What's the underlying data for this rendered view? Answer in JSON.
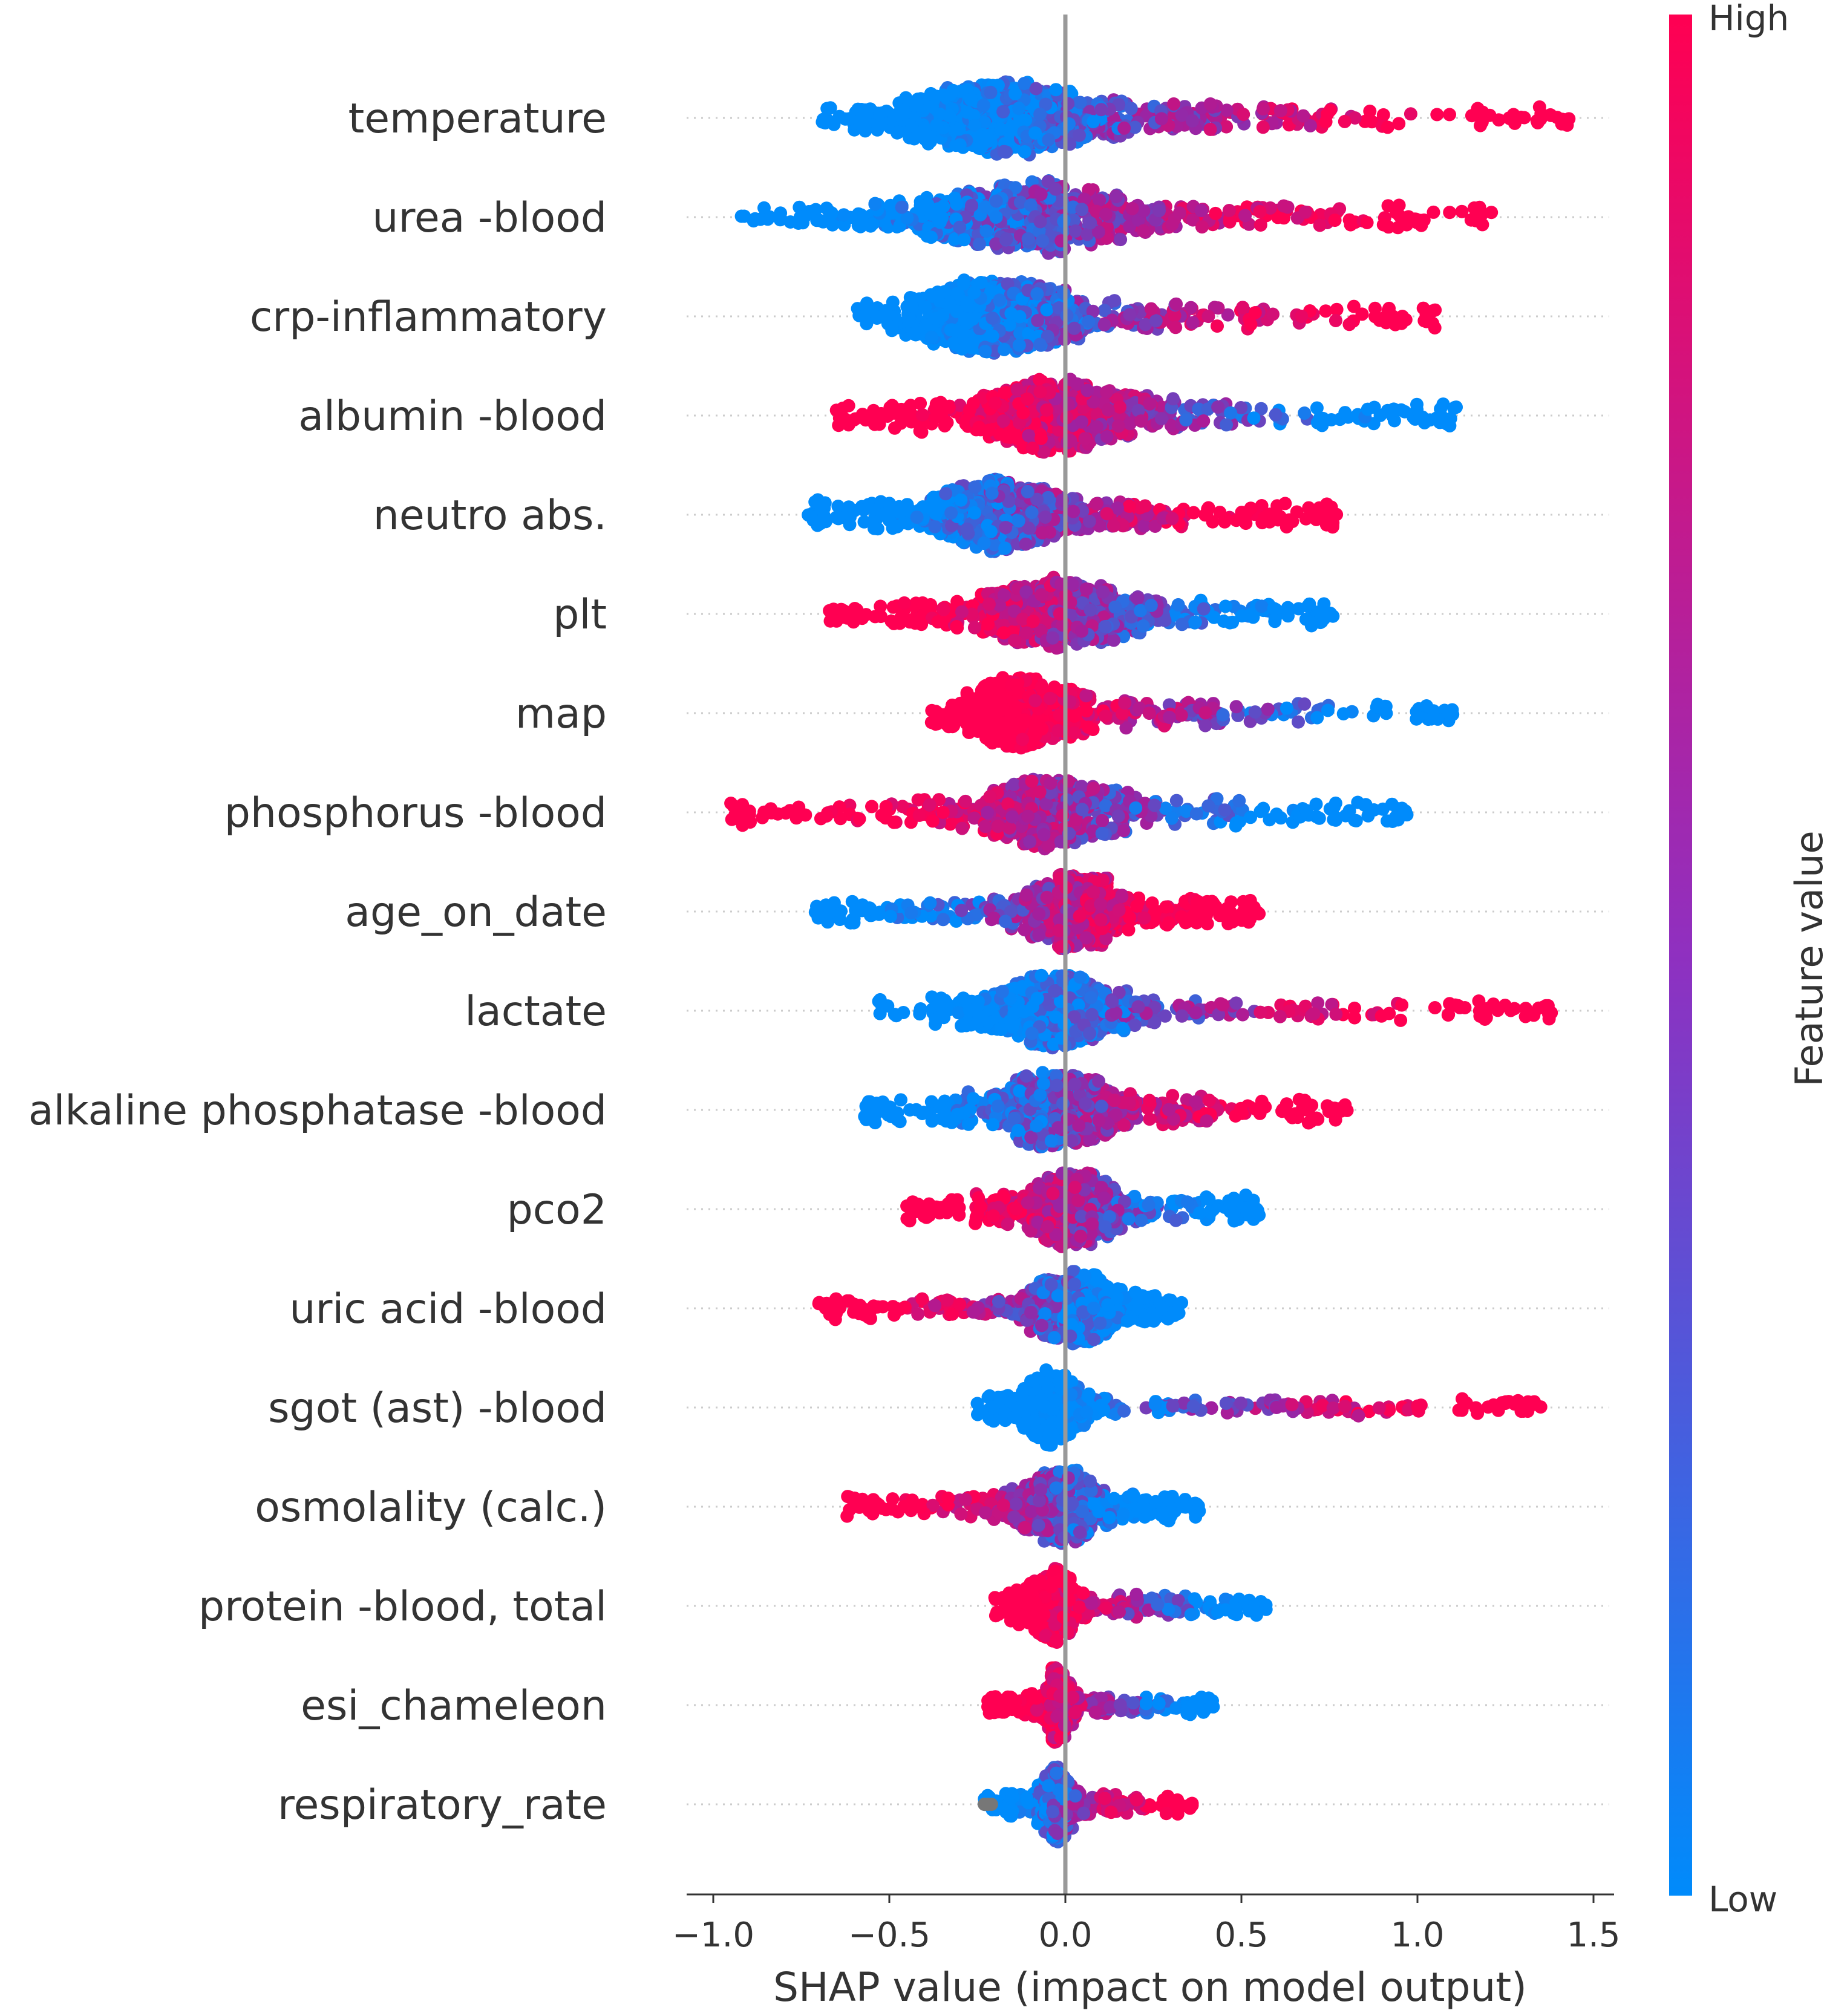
{
  "chart_data": {
    "type": "scatter",
    "subtype": "shap-beeswarm-summary",
    "xlabel": "SHAP value (impact on model output)",
    "xlim": [
      -1.07,
      1.55
    ],
    "xticks": [
      -1.0,
      -0.5,
      0.0,
      0.5,
      1.0,
      1.5
    ],
    "xtick_labels": [
      "−1.0",
      "−0.5",
      "0.0",
      "0.5",
      "1.0",
      "1.5"
    ],
    "zero_line": 0.0,
    "colorbar": {
      "label": "Feature value",
      "high_label": "High",
      "low_label": "Low",
      "high_color": "#ff0052",
      "mid_color": "#a020a0",
      "low_color": "#008bfb",
      "missing_color": "#777777"
    },
    "features": [
      {
        "name": "temperature",
        "min": -0.69,
        "max": 1.43,
        "left_color": "low",
        "right_color": "high",
        "center": -0.16,
        "spread": 0.42,
        "density": 1.0
      },
      {
        "name": "urea -blood",
        "min": -0.92,
        "max": 1.21,
        "left_color": "low",
        "right_color": "high",
        "center": -0.1,
        "spread": 0.42,
        "density": 0.85
      },
      {
        "name": "crp-inflammatory",
        "min": -0.59,
        "max": 1.05,
        "left_color": "low",
        "right_color": "high",
        "center": -0.18,
        "spread": 0.34,
        "density": 0.85
      },
      {
        "name": "albumin -blood",
        "min": -0.65,
        "max": 1.11,
        "left_color": "high",
        "right_color": "low",
        "center": -0.02,
        "spread": 0.35,
        "density": 0.75
      },
      {
        "name": "neutro abs.",
        "min": -0.73,
        "max": 0.77,
        "left_color": "low",
        "right_color": "high",
        "center": -0.18,
        "spread": 0.33,
        "density": 0.8
      },
      {
        "name": "plt",
        "min": -0.67,
        "max": 0.76,
        "left_color": "high",
        "right_color": "low",
        "center": -0.02,
        "spread": 0.32,
        "density": 0.75
      },
      {
        "name": "map",
        "min": -0.38,
        "max": 1.1,
        "left_color": "high",
        "right_color": "low",
        "center": -0.1,
        "spread": 0.26,
        "density": 0.65
      },
      {
        "name": "phosphorus -blood",
        "min": -0.95,
        "max": 0.97,
        "left_color": "high",
        "right_color": "low",
        "center": -0.05,
        "spread": 0.3,
        "density": 0.6
      },
      {
        "name": "age_on_date",
        "min": -0.71,
        "max": 0.55,
        "left_color": "low",
        "right_color": "high",
        "center": 0.02,
        "spread": 0.22,
        "density": 0.75
      },
      {
        "name": "lactate",
        "min": -0.53,
        "max": 1.38,
        "left_color": "low",
        "right_color": "high",
        "center": -0.02,
        "spread": 0.28,
        "density": 0.7
      },
      {
        "name": "alkaline phosphatase -blood",
        "min": -0.57,
        "max": 0.8,
        "left_color": "low",
        "right_color": "high",
        "center": -0.02,
        "spread": 0.25,
        "density": 0.7
      },
      {
        "name": "pco2",
        "min": -0.45,
        "max": 0.55,
        "left_color": "high",
        "right_color": "low",
        "center": 0.02,
        "spread": 0.2,
        "density": 0.65
      },
      {
        "name": "uric acid -blood",
        "min": -0.7,
        "max": 0.33,
        "left_color": "high",
        "right_color": "low",
        "center": 0.02,
        "spread": 0.18,
        "density": 0.7
      },
      {
        "name": "sgot (ast) -blood",
        "min": -0.25,
        "max": 1.35,
        "left_color": "low",
        "right_color": "high",
        "center": -0.03,
        "spread": 0.14,
        "density": 0.6
      },
      {
        "name": "osmolality (calc.)",
        "min": -0.62,
        "max": 0.38,
        "left_color": "high",
        "right_color": "low",
        "center": -0.02,
        "spread": 0.18,
        "density": 0.6
      },
      {
        "name": "protein -blood, total",
        "min": -0.2,
        "max": 0.57,
        "left_color": "high",
        "right_color": "low",
        "center": -0.03,
        "spread": 0.12,
        "density": 0.5
      },
      {
        "name": "esi_chameleon",
        "min": -0.22,
        "max": 0.42,
        "left_color": "high",
        "right_color": "low",
        "center": -0.02,
        "spread": 0.06,
        "density": 0.55
      },
      {
        "name": "respiratory_rate",
        "min": -0.23,
        "max": 0.36,
        "left_color": "low",
        "right_color": "high",
        "center": -0.02,
        "spread": 0.08,
        "density": 0.45
      }
    ]
  }
}
